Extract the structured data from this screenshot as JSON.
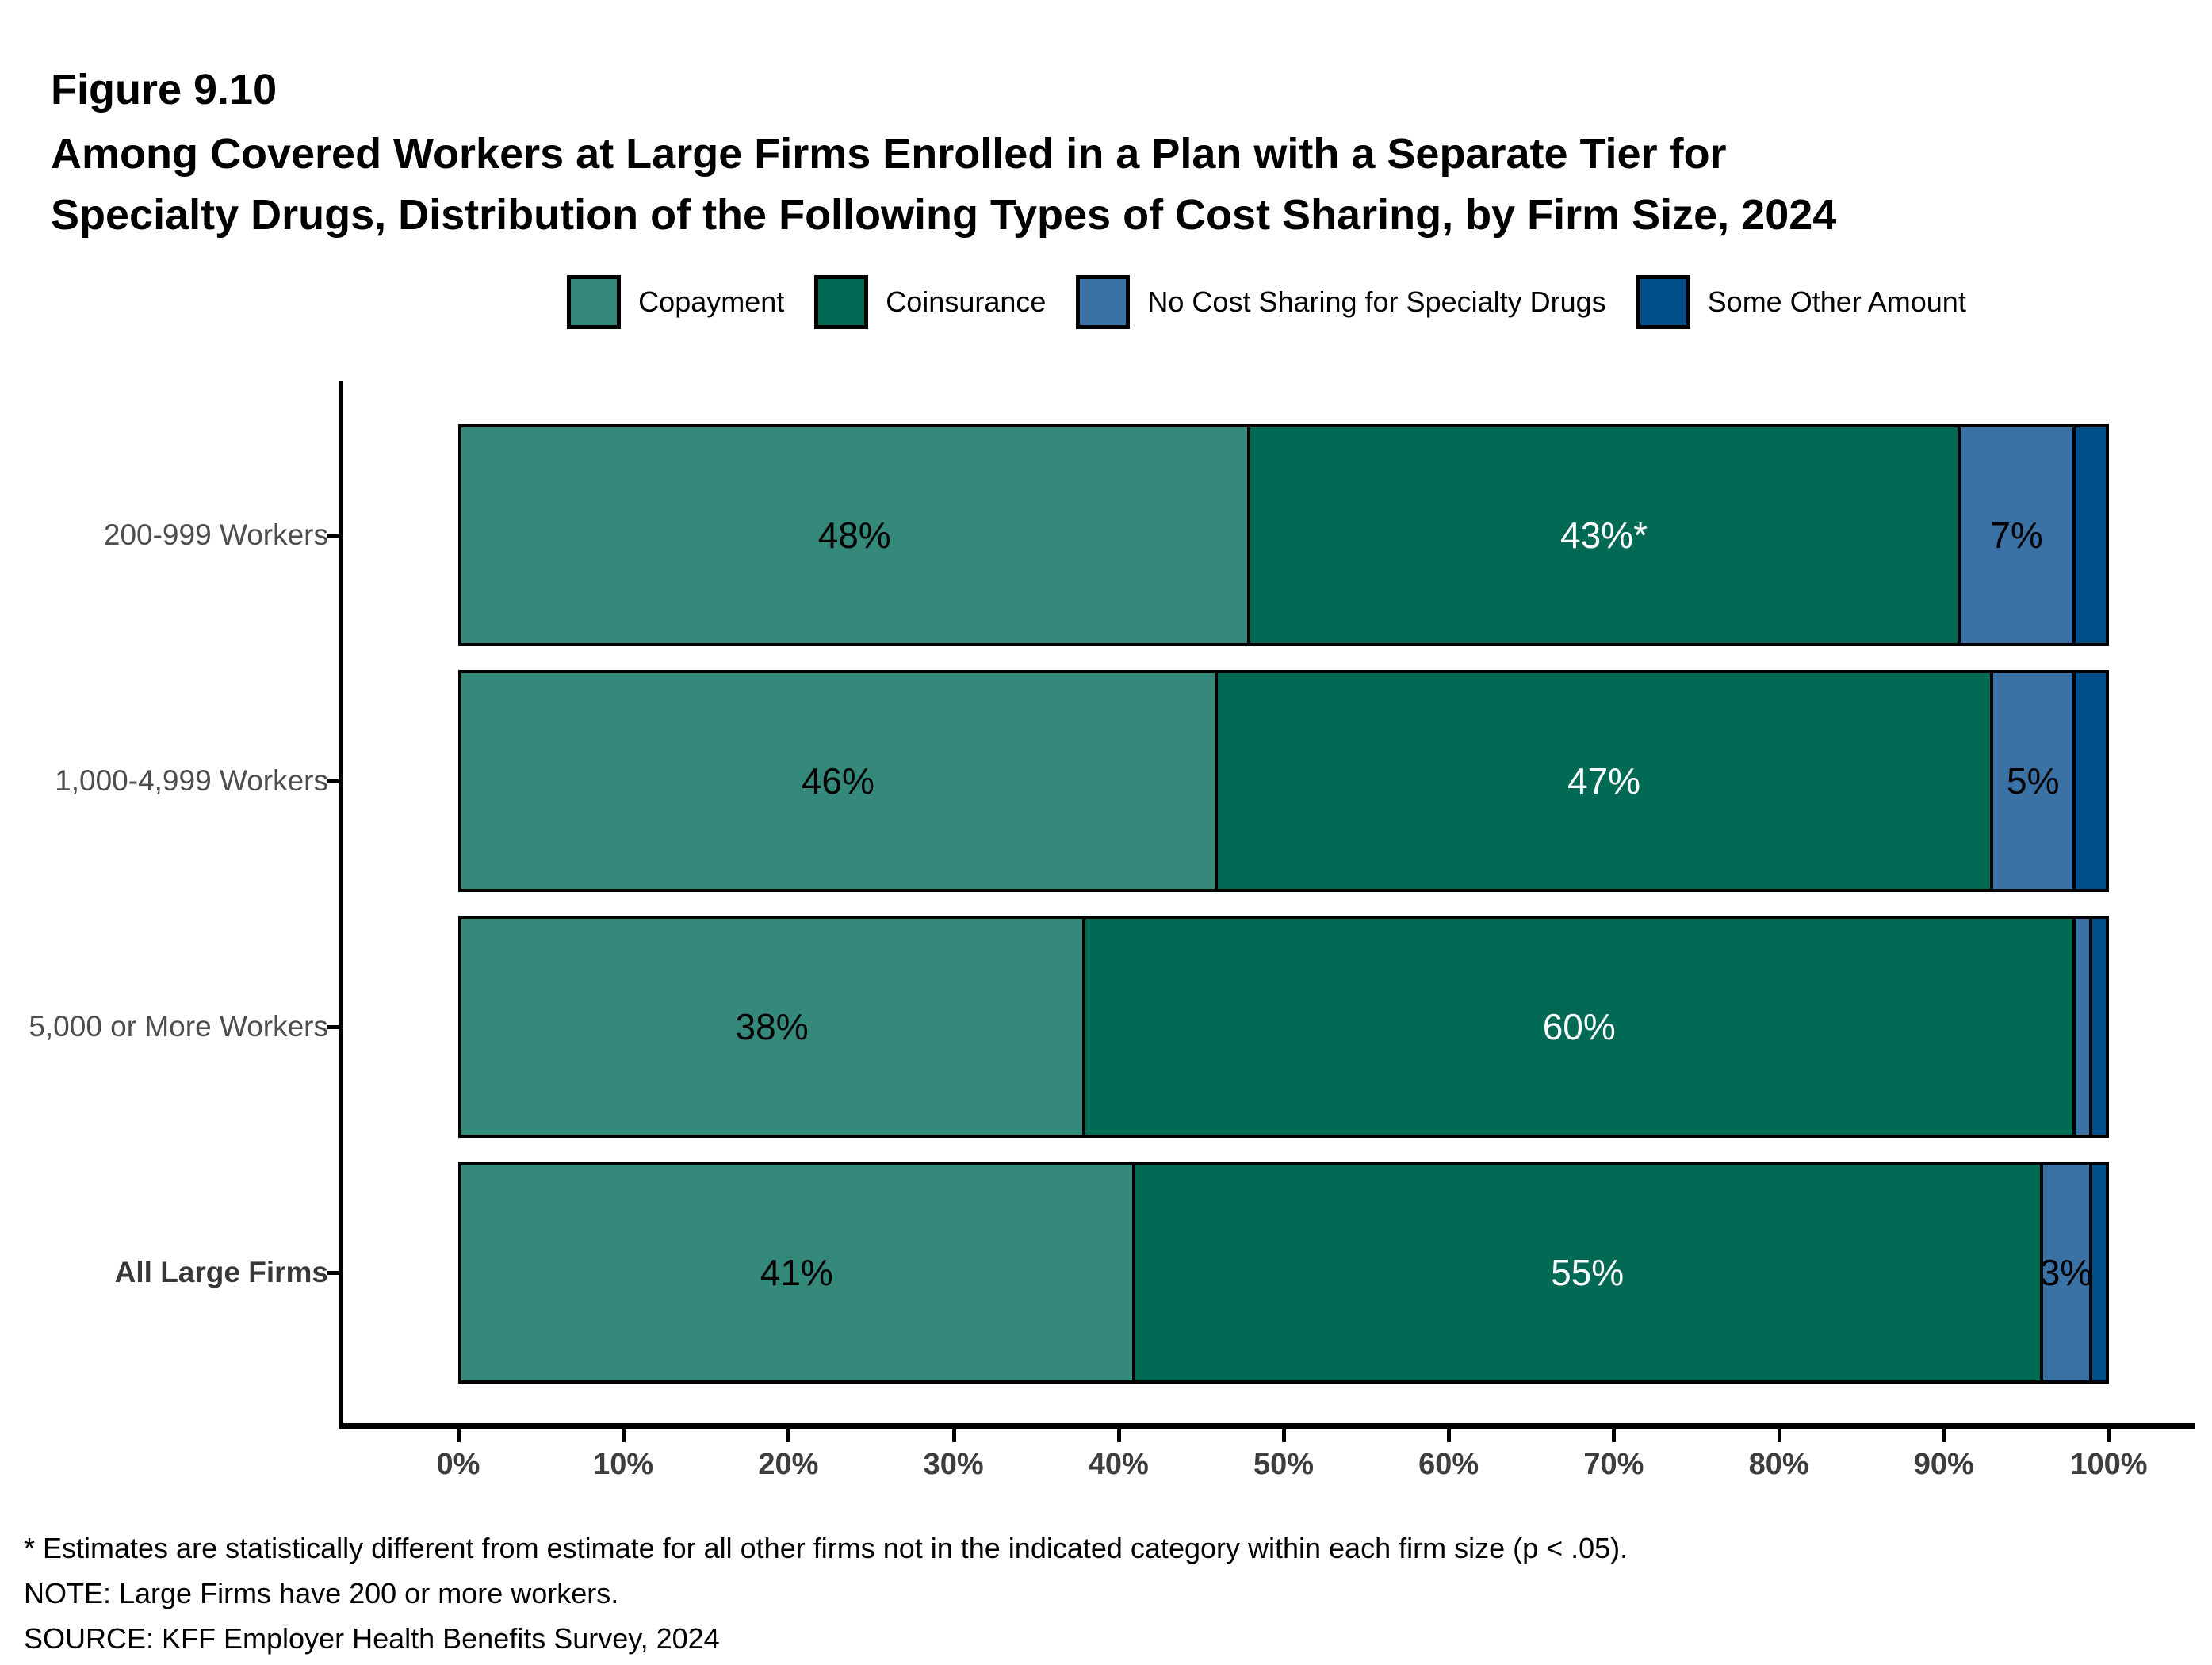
{
  "figure_label": "Figure 9.10",
  "title_lines": [
    "Among Covered Workers at Large Firms Enrolled in a Plan with a Separate Tier for",
    "Specialty Drugs, Distribution of the Following Types of Cost Sharing, by Firm Size, 2024"
  ],
  "legend": {
    "items": [
      {
        "label": "Copayment",
        "color": "#35897B"
      },
      {
        "label": "Coinsurance",
        "color": "#006A54"
      },
      {
        "label": "No Cost Sharing for Specialty Drugs",
        "color": "#3B72A6"
      },
      {
        "label": "Some Other Amount",
        "color": "#004F88"
      }
    ]
  },
  "chart_data": {
    "type": "bar",
    "stacked": true,
    "orientation": "horizontal",
    "title": "Among Covered Workers at Large Firms Enrolled in a Plan with a Separate Tier for Specialty Drugs, Distribution of the Following Types of Cost Sharing, by Firm Size, 2024",
    "categories": [
      "200-999 Workers",
      "1,000-4,999 Workers",
      "5,000 or More Workers",
      "All Large Firms"
    ],
    "category_bold": [
      false,
      false,
      false,
      true
    ],
    "series": [
      {
        "name": "Copayment",
        "color": "#35897B",
        "label_color": "#000000",
        "values": [
          48,
          46,
          38,
          41
        ],
        "labels": [
          "48%",
          "46%",
          "38%",
          "41%"
        ]
      },
      {
        "name": "Coinsurance",
        "color": "#006A54",
        "label_color": "#FFFFFF",
        "values": [
          43,
          47,
          60,
          55
        ],
        "labels": [
          "43%*",
          "47%",
          "60%",
          "55%"
        ]
      },
      {
        "name": "No Cost Sharing for Specialty Drugs",
        "color": "#3B72A6",
        "label_color": "#000000",
        "values": [
          7,
          5,
          1,
          3
        ],
        "labels": [
          "7%",
          "5%",
          "",
          "3%"
        ]
      },
      {
        "name": "Some Other Amount",
        "color": "#004F88",
        "label_color": "#000000",
        "values": [
          2,
          2,
          1,
          1
        ],
        "labels": [
          "",
          "",
          "",
          ""
        ]
      }
    ],
    "xlim": [
      0,
      100
    ],
    "x_tick_labels": [
      "0%",
      "10%",
      "20%",
      "30%",
      "40%",
      "50%",
      "60%",
      "70%",
      "80%",
      "90%",
      "100%"
    ],
    "xlabel": "",
    "ylabel": "",
    "grid": false,
    "legend_position": "top"
  },
  "footnotes": [
    "* Estimates are statistically different from estimate for all other firms not in the indicated category within each firm size (p < .05).",
    "NOTE: Large Firms have 200 or more workers.",
    "SOURCE: KFF Employer Health Benefits Survey, 2024"
  ],
  "colors": {
    "category_label": "#4d4d4d",
    "category_label_emphasis": "#383838",
    "axis_tick_label": "#3d3d3d",
    "axis_line": "#000000"
  }
}
